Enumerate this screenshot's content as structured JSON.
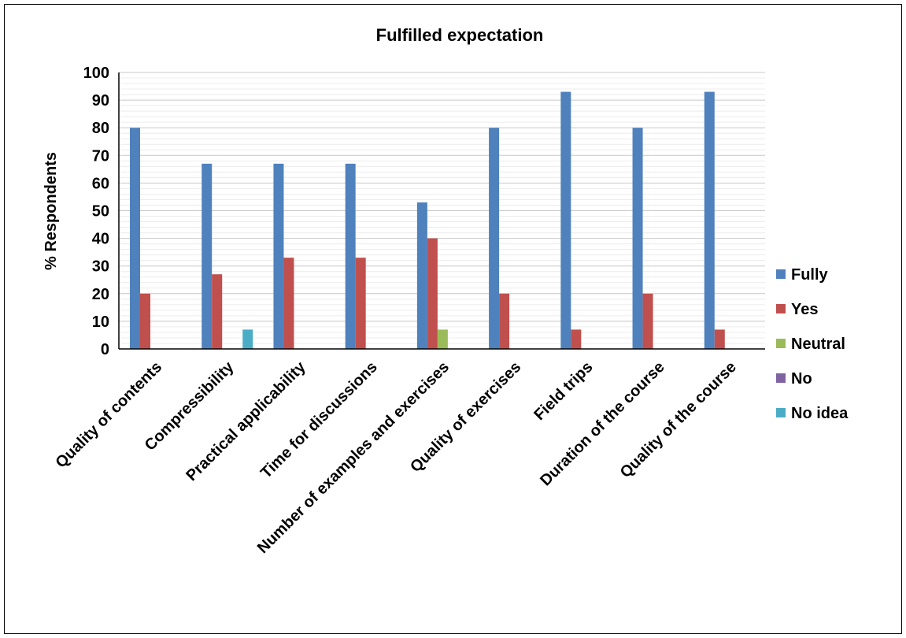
{
  "chart_data": {
    "type": "bar",
    "title": "Fulfilled expectation",
    "xlabel": "",
    "ylabel": "% Respondents",
    "ylim": [
      0,
      100
    ],
    "yticks": [
      "0",
      "10",
      "20",
      "30",
      "40",
      "50",
      "60",
      "70",
      "80",
      "90",
      "100"
    ],
    "grid": true,
    "legend_position": "right",
    "categories": [
      "Quality of contents",
      "Compressibility",
      "Practical applicability",
      "Time for discussions",
      "Number of examples and exercises",
      "Quality of exercises",
      "Field trips",
      "Duration of the course",
      "Quality of the course"
    ],
    "series": [
      {
        "name": "Fully",
        "color": "#4f81bd",
        "values": [
          80,
          67,
          67,
          67,
          53,
          80,
          93,
          80,
          93
        ]
      },
      {
        "name": "Yes",
        "color": "#c0504d",
        "values": [
          20,
          27,
          33,
          33,
          40,
          20,
          7,
          20,
          7
        ]
      },
      {
        "name": "Neutral",
        "color": "#9bbb59",
        "values": [
          0,
          0,
          0,
          0,
          7,
          0,
          0,
          0,
          0
        ]
      },
      {
        "name": "No",
        "color": "#8064a2",
        "values": [
          0,
          0,
          0,
          0,
          0,
          0,
          0,
          0,
          0
        ]
      },
      {
        "name": "No idea",
        "color": "#4bacc6",
        "values": [
          0,
          7,
          0,
          0,
          0,
          0,
          0,
          0,
          0
        ]
      }
    ]
  }
}
